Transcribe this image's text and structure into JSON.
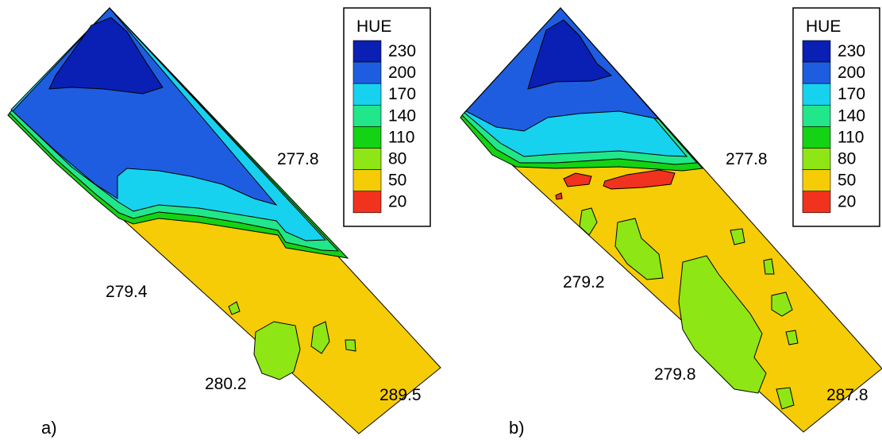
{
  "panels": [
    {
      "id": "a",
      "panel_label": "a)",
      "legend": {
        "title": "HUE",
        "entries": [
          {
            "label": "230",
            "color": "#0a1fb4"
          },
          {
            "label": "200",
            "color": "#1e5de0"
          },
          {
            "label": "170",
            "color": "#17d2ee"
          },
          {
            "label": "140",
            "color": "#22e68a"
          },
          {
            "label": "110",
            "color": "#14d214"
          },
          {
            "label": "80",
            "color": "#8ee614"
          },
          {
            "label": "50",
            "color": "#f5cc05"
          },
          {
            "label": "20",
            "color": "#f0321e"
          }
        ]
      },
      "annotations": [
        "277.8",
        "279.4",
        "280.2",
        "289.5"
      ]
    },
    {
      "id": "b",
      "panel_label": "b)",
      "legend": {
        "title": "HUE",
        "entries": [
          {
            "label": "230",
            "color": "#0a1fb4"
          },
          {
            "label": "200",
            "color": "#1e5de0"
          },
          {
            "label": "170",
            "color": "#17d2ee"
          },
          {
            "label": "140",
            "color": "#22e68a"
          },
          {
            "label": "110",
            "color": "#14d214"
          },
          {
            "label": "80",
            "color": "#8ee614"
          },
          {
            "label": "50",
            "color": "#f5cc05"
          },
          {
            "label": "20",
            "color": "#f0321e"
          }
        ]
      },
      "annotations": [
        "277.8",
        "279.2",
        "279.8",
        "287.8"
      ]
    }
  ],
  "colors": {
    "background": "#ffffff",
    "contour_line": "#000000"
  }
}
